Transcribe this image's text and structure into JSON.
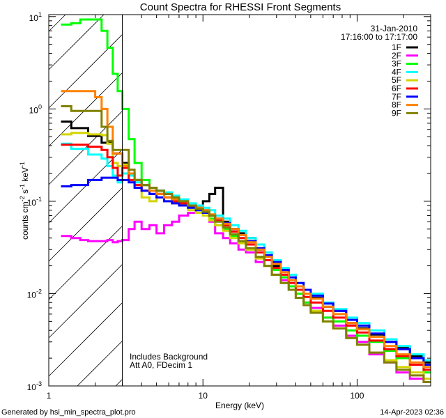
{
  "chart_data": {
    "type": "line",
    "title": "Count Spectra for RHESSI Front Segments",
    "xlabel": "Energy (keV)",
    "ylabel": "counts cm^-2 s^-1 keV^-1",
    "ylabel_parts": {
      "base": "counts cm",
      "e1": "-2",
      "mid": " s",
      "e2": "-1",
      "mid2": " keV",
      "e3": "-1"
    },
    "xscale": "log",
    "yscale": "log",
    "xlim": [
      1,
      300
    ],
    "ylim": [
      0.001,
      10.5
    ],
    "x_tick_labels": [
      {
        "value": 1,
        "label": "1"
      },
      {
        "value": 10,
        "label": "10"
      },
      {
        "value": 100,
        "label": "100"
      }
    ],
    "y_tick_labels": [
      {
        "value": 0.001,
        "base": "10",
        "exp": "-3"
      },
      {
        "value": 0.01,
        "base": "10",
        "exp": "-2"
      },
      {
        "value": 0.1,
        "base": "10",
        "exp": "-1"
      },
      {
        "value": 1,
        "base": "10",
        "exp": "0"
      },
      {
        "value": 10,
        "base": "10",
        "exp": "1"
      }
    ],
    "grid": false,
    "shaded_region": {
      "xmin": 1,
      "xmax": 3,
      "style": "hatched"
    },
    "legend_placement": "top-right",
    "legend_header": [
      "31-Jan-2010",
      "17:16:00 to 17:17:00"
    ],
    "annotations": [
      "Includes Background",
      "Att A0, FDecim 1"
    ],
    "energies": [
      1.2,
      1.4,
      1.6,
      1.8,
      2.0,
      2.2,
      2.4,
      2.6,
      2.8,
      3.0,
      3.3,
      3.6,
      4.0,
      4.5,
      5,
      5.6,
      6.3,
      7,
      8,
      9,
      10,
      11,
      12,
      13.5,
      15,
      17,
      19,
      22,
      25,
      28,
      32,
      36,
      40,
      45,
      50,
      60,
      70,
      85,
      100,
      120,
      150,
      180,
      220,
      270
    ],
    "series": [
      {
        "name": "1F",
        "color": "#000000",
        "values": [
          0.73,
          0.62,
          0.62,
          0.51,
          0.51,
          0.43,
          0.43,
          0.33,
          0.33,
          0.26,
          0.2,
          0.17,
          0.15,
          0.14,
          0.13,
          0.12,
          0.11,
          0.1,
          0.09,
          0.085,
          0.1,
          0.12,
          0.14,
          0.06,
          0.05,
          0.045,
          0.04,
          0.03,
          0.026,
          0.02,
          0.018,
          0.014,
          0.012,
          0.01,
          0.009,
          0.0072,
          0.0065,
          0.0048,
          0.0042,
          0.0036,
          0.003,
          0.0026,
          0.0021,
          0.0018
        ]
      },
      {
        "name": "2F",
        "color": "#ff00ff",
        "values": [
          0.042,
          0.04,
          0.038,
          0.037,
          0.037,
          0.037,
          0.038,
          0.036,
          0.037,
          0.038,
          0.05,
          0.06,
          0.05,
          0.055,
          0.045,
          0.055,
          0.06,
          0.07,
          0.075,
          0.09,
          0.08,
          0.06,
          0.045,
          0.04,
          0.035,
          0.03,
          0.028,
          0.022,
          0.02,
          0.016,
          0.014,
          0.011,
          0.009,
          0.008,
          0.007,
          0.0055,
          0.0045,
          0.0035,
          0.003,
          0.0022,
          0.0018,
          0.0014,
          0.0012,
          0.0011
        ]
      },
      {
        "name": "3F",
        "color": "#00ff00",
        "values": [
          8.2,
          8.5,
          9.3,
          9.3,
          9.3,
          7,
          4.6,
          2.4,
          1.56,
          1.0,
          0.47,
          0.26,
          0.17,
          0.14,
          0.12,
          0.11,
          0.1,
          0.095,
          0.085,
          0.08,
          0.075,
          0.065,
          0.055,
          0.05,
          0.042,
          0.036,
          0.03,
          0.025,
          0.02,
          0.018,
          0.015,
          0.012,
          0.01,
          0.008,
          0.0065,
          0.0055,
          0.005,
          0.004,
          0.0035,
          0.003,
          0.0024,
          0.002,
          0.0017,
          0.0014
        ]
      },
      {
        "name": "4F",
        "color": "#00ffff",
        "values": [
          0.42,
          0.37,
          0.37,
          0.32,
          0.32,
          0.29,
          0.24,
          0.19,
          0.16,
          0.2,
          0.19,
          0.16,
          0.15,
          0.14,
          0.13,
          0.125,
          0.115,
          0.105,
          0.095,
          0.09,
          0.085,
          0.08,
          0.07,
          0.065,
          0.055,
          0.048,
          0.04,
          0.034,
          0.028,
          0.023,
          0.019,
          0.016,
          0.013,
          0.011,
          0.01,
          0.008,
          0.0068,
          0.0055,
          0.0048,
          0.004,
          0.0032,
          0.0027,
          0.0022,
          0.0019
        ]
      },
      {
        "name": "5F",
        "color": "#d4d400",
        "values": [
          0.53,
          0.55,
          0.55,
          0.53,
          0.53,
          0.52,
          0.42,
          0.26,
          0.24,
          0.25,
          0.2,
          0.15,
          0.11,
          0.1,
          0.11,
          0.1,
          0.095,
          0.09,
          0.08,
          0.075,
          0.07,
          0.062,
          0.055,
          0.048,
          0.04,
          0.035,
          0.03,
          0.024,
          0.02,
          0.016,
          0.013,
          0.011,
          0.009,
          0.0075,
          0.0065,
          0.005,
          0.0042,
          0.0033,
          0.0028,
          0.0023,
          0.0019,
          0.0016,
          0.0014,
          0.0012
        ]
      },
      {
        "name": "6F",
        "color": "#ff0000",
        "values": [
          0.41,
          0.41,
          0.41,
          0.39,
          0.39,
          0.36,
          0.3,
          0.23,
          0.19,
          0.23,
          0.17,
          0.15,
          0.13,
          0.12,
          0.12,
          0.11,
          0.1,
          0.095,
          0.088,
          0.082,
          0.076,
          0.07,
          0.062,
          0.055,
          0.047,
          0.04,
          0.034,
          0.028,
          0.023,
          0.019,
          0.016,
          0.013,
          0.011,
          0.0092,
          0.008,
          0.0065,
          0.0055,
          0.0045,
          0.0038,
          0.0031,
          0.0025,
          0.0021,
          0.0017,
          0.0015
        ]
      },
      {
        "name": "7F",
        "color": "#0000ff",
        "values": [
          0.145,
          0.15,
          0.15,
          0.17,
          0.17,
          0.18,
          0.18,
          0.18,
          0.17,
          0.17,
          0.16,
          0.14,
          0.13,
          0.12,
          0.11,
          0.1,
          0.095,
          0.09,
          0.085,
          0.08,
          0.075,
          0.07,
          0.065,
          0.058,
          0.05,
          0.043,
          0.037,
          0.031,
          0.026,
          0.022,
          0.018,
          0.015,
          0.013,
          0.011,
          0.0095,
          0.0078,
          0.0065,
          0.0052,
          0.0045,
          0.0037,
          0.003,
          0.0025,
          0.002,
          0.0017
        ]
      },
      {
        "name": "8F",
        "color": "#ff8000",
        "values": [
          1.56,
          1.56,
          1.56,
          1.56,
          1.34,
          1.0,
          0.64,
          0.33,
          0.33,
          0.24,
          0.2,
          0.17,
          0.15,
          0.13,
          0.12,
          0.11,
          0.105,
          0.1,
          0.09,
          0.085,
          0.08,
          0.072,
          0.065,
          0.057,
          0.05,
          0.043,
          0.036,
          0.03,
          0.025,
          0.021,
          0.017,
          0.014,
          0.012,
          0.01,
          0.0088,
          0.0072,
          0.006,
          0.0048,
          0.0041,
          0.0034,
          0.0027,
          0.0022,
          0.0018,
          0.0016
        ]
      },
      {
        "name": "9F",
        "color": "#808000",
        "values": [
          1.07,
          0.95,
          0.95,
          0.95,
          0.95,
          0.64,
          0.45,
          0.36,
          0.36,
          0.36,
          0.22,
          0.17,
          0.15,
          0.14,
          0.13,
          0.12,
          0.11,
          0.1,
          0.09,
          0.083,
          0.077,
          0.07,
          0.06,
          0.052,
          0.044,
          0.037,
          0.031,
          0.025,
          0.02,
          0.016,
          0.013,
          0.011,
          0.009,
          0.0075,
          0.0062,
          0.005,
          0.0042,
          0.0033,
          0.0028,
          0.0023,
          0.0018,
          0.0015,
          0.0013,
          0.0011
        ]
      }
    ]
  },
  "footer": {
    "generated_by": "Generated by hsi_min_spectra_plot.pro",
    "timestamp": "14-Apr-2023 02:36"
  }
}
